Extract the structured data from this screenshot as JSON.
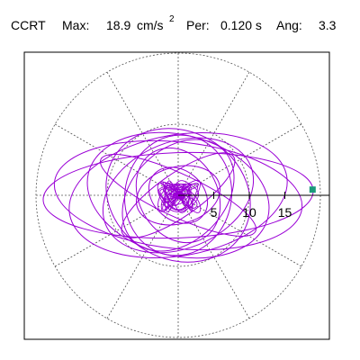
{
  "header": {
    "station": "CCRT",
    "max_label": "Max:",
    "max_value": "18.9",
    "max_unit": "cm/s",
    "max_unit_exp": "2",
    "per_label": "Per:",
    "per_value": "0.120 s",
    "ang_label": "Ang:",
    "ang_value": "3.3"
  },
  "colors": {
    "trace": "#9a00d6",
    "marker": "#1a9a7a",
    "grid": "#555555",
    "axis": "#000000",
    "frame": "#000000"
  },
  "chart_data": {
    "type": "scatter",
    "title": "",
    "xlabel": "",
    "ylabel": "",
    "r_max": 20,
    "grid_circles": [
      10,
      20
    ],
    "grid_spokes_deg": [
      0,
      30,
      60,
      90,
      120,
      150,
      180,
      210,
      240,
      270,
      300,
      330
    ],
    "tick_values": [
      5,
      10,
      15
    ],
    "tick_labels": [
      "5",
      "10",
      "15"
    ],
    "max_amplitude": 18.9,
    "max_angle_deg": 3.3,
    "period_s": 0.12,
    "orbit_ellipses": [
      {
        "a": 19.0,
        "b": 6.0,
        "angle": 2
      },
      {
        "a": 17.5,
        "b": 7.5,
        "angle": -6
      },
      {
        "a": 15.5,
        "b": 8.5,
        "angle": 10
      },
      {
        "a": 13.0,
        "b": 8.5,
        "angle": -14
      },
      {
        "a": 11.0,
        "b": 7.5,
        "angle": 22
      },
      {
        "a": 10.5,
        "b": 9.0,
        "angle": -30
      },
      {
        "a": 9.0,
        "b": 6.5,
        "angle": 45
      },
      {
        "a": 8.5,
        "b": 7.5,
        "angle": 80
      },
      {
        "a": 7.0,
        "b": 5.5,
        "angle": -60
      },
      {
        "a": 6.0,
        "b": 4.0,
        "angle": 15
      },
      {
        "a": 4.5,
        "b": 3.5,
        "angle": -40
      },
      {
        "a": 12.0,
        "b": 3.0,
        "angle": -25
      },
      {
        "a": 9.5,
        "b": 3.0,
        "angle": 35
      }
    ],
    "points": [
      [
        18.9,
        0.8
      ]
    ]
  }
}
